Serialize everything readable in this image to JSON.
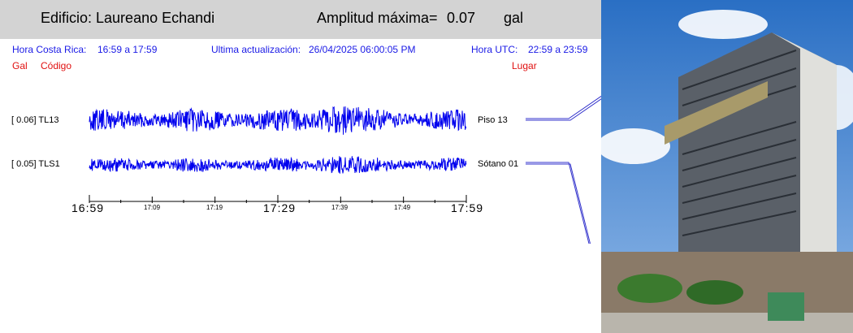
{
  "header": {
    "building": "Edificio: Laureano Echandi",
    "amp_label": "Amplitud máxima=",
    "amp_value": "0.07",
    "amp_unit": "gal"
  },
  "info": {
    "cr_label": "Hora Costa Rica:",
    "cr_range": "16:59 a 17:59",
    "update_label": "Ultima actualización:",
    "update_value": "26/04/2025 06:00:05 PM",
    "utc_label": "Hora UTC:",
    "utc_range": "22:59 a 23:59"
  },
  "columns": {
    "gal": "Gal",
    "code": "Código",
    "place": "Lugar"
  },
  "traces": [
    {
      "value": "[  0.06] TL13",
      "place": "Piso 13",
      "amplitude": 0.06
    },
    {
      "value": "[  0.05] TLS1",
      "place": "Sótano 01",
      "amplitude": 0.05
    }
  ],
  "axis": {
    "major": [
      "16:59",
      "17:29",
      "17:59"
    ],
    "minor": [
      "17:09",
      "17:19",
      "17:39",
      "17:49"
    ]
  },
  "colors": {
    "trace": "#0000ee",
    "header_bg": "#d3d3d3",
    "info": "#1a1ae6",
    "labels_red": "#e01010"
  }
}
